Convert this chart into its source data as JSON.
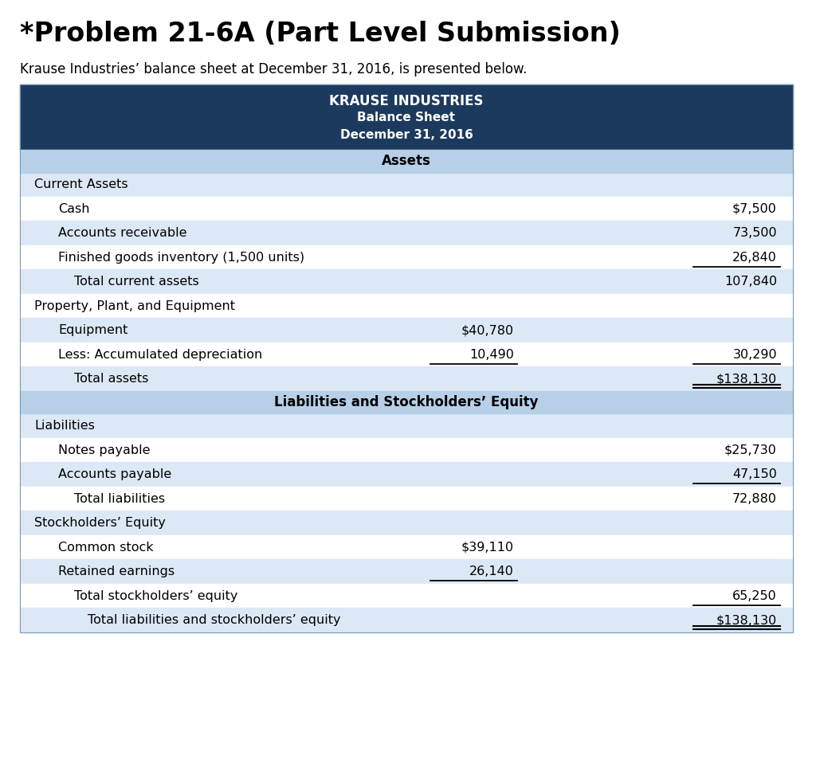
{
  "title": "*Problem 21-6A (Part Level Submission)",
  "subtitle": "Krause Industries’ balance sheet at December 31, 2016, is presented below.",
  "header_line1": "KRAUSE INDUSTRIES",
  "header_line2": "Balance Sheet",
  "header_line3": "December 31, 2016",
  "section_assets": "Assets",
  "section_liabilities": "Liabilities and Stockholders’ Equity",
  "dark_blue": "#1c3a5e",
  "light_blue": "#dce8f5",
  "medium_blue": "#b8cfe8",
  "white": "#ffffff",
  "rows": [
    {
      "label": "Current Assets",
      "col1": "",
      "col2": "",
      "indent": 0,
      "bg": "light",
      "underline_col1": false,
      "underline_col2": false,
      "double_underline": false
    },
    {
      "label": "Cash",
      "col1": "",
      "col2": "$7,500",
      "indent": 1,
      "bg": "white",
      "underline_col1": false,
      "underline_col2": false,
      "double_underline": false
    },
    {
      "label": "Accounts receivable",
      "col1": "",
      "col2": "73,500",
      "indent": 1,
      "bg": "light",
      "underline_col1": false,
      "underline_col2": false,
      "double_underline": false
    },
    {
      "label": "Finished goods inventory (1,500 units)",
      "col1": "",
      "col2": "26,840",
      "indent": 1,
      "bg": "white",
      "underline_col1": false,
      "underline_col2": true,
      "double_underline": false
    },
    {
      "label": "Total current assets",
      "col1": "",
      "col2": "107,840",
      "indent": 2,
      "bg": "light",
      "underline_col1": false,
      "underline_col2": false,
      "double_underline": false
    },
    {
      "label": "Property, Plant, and Equipment",
      "col1": "",
      "col2": "",
      "indent": 0,
      "bg": "white",
      "underline_col1": false,
      "underline_col2": false,
      "double_underline": false
    },
    {
      "label": "Equipment",
      "col1": "$40,780",
      "col2": "",
      "indent": 1,
      "bg": "light",
      "underline_col1": false,
      "underline_col2": false,
      "double_underline": false
    },
    {
      "label": "Less: Accumulated depreciation",
      "col1": "10,490",
      "col2": "30,290",
      "indent": 1,
      "bg": "white",
      "underline_col1": true,
      "underline_col2": true,
      "double_underline": false
    },
    {
      "label": "Total assets",
      "col1": "",
      "col2": "$138,130",
      "indent": 2,
      "bg": "light",
      "underline_col1": false,
      "underline_col2": false,
      "double_underline": true
    }
  ],
  "rows2": [
    {
      "label": "Liabilities",
      "col1": "",
      "col2": "",
      "indent": 0,
      "bg": "light",
      "underline_col1": false,
      "underline_col2": false,
      "double_underline": false
    },
    {
      "label": "Notes payable",
      "col1": "",
      "col2": "$25,730",
      "indent": 1,
      "bg": "white",
      "underline_col1": false,
      "underline_col2": false,
      "double_underline": false
    },
    {
      "label": "Accounts payable",
      "col1": "",
      "col2": "47,150",
      "indent": 1,
      "bg": "light",
      "underline_col1": false,
      "underline_col2": true,
      "double_underline": false
    },
    {
      "label": "Total liabilities",
      "col1": "",
      "col2": "72,880",
      "indent": 2,
      "bg": "white",
      "underline_col1": false,
      "underline_col2": false,
      "double_underline": false
    },
    {
      "label": "Stockholders’ Equity",
      "col1": "",
      "col2": "",
      "indent": 0,
      "bg": "light",
      "underline_col1": false,
      "underline_col2": false,
      "double_underline": false
    },
    {
      "label": "Common stock",
      "col1": "$39,110",
      "col2": "",
      "indent": 1,
      "bg": "white",
      "underline_col1": false,
      "underline_col2": false,
      "double_underline": false
    },
    {
      "label": "Retained earnings",
      "col1": "26,140",
      "col2": "",
      "indent": 1,
      "bg": "light",
      "underline_col1": true,
      "underline_col2": false,
      "double_underline": false
    },
    {
      "label": "Total stockholders’ equity",
      "col1": "",
      "col2": "65,250",
      "indent": 2,
      "bg": "white",
      "underline_col1": false,
      "underline_col2": true,
      "double_underline": false
    },
    {
      "label": "Total liabilities and stockholders’ equity",
      "col1": "",
      "col2": "$138,130",
      "indent": 3,
      "bg": "light",
      "underline_col1": false,
      "underline_col2": false,
      "double_underline": true
    }
  ],
  "fig_width": 10.24,
  "fig_height": 9.68,
  "dpi": 100
}
